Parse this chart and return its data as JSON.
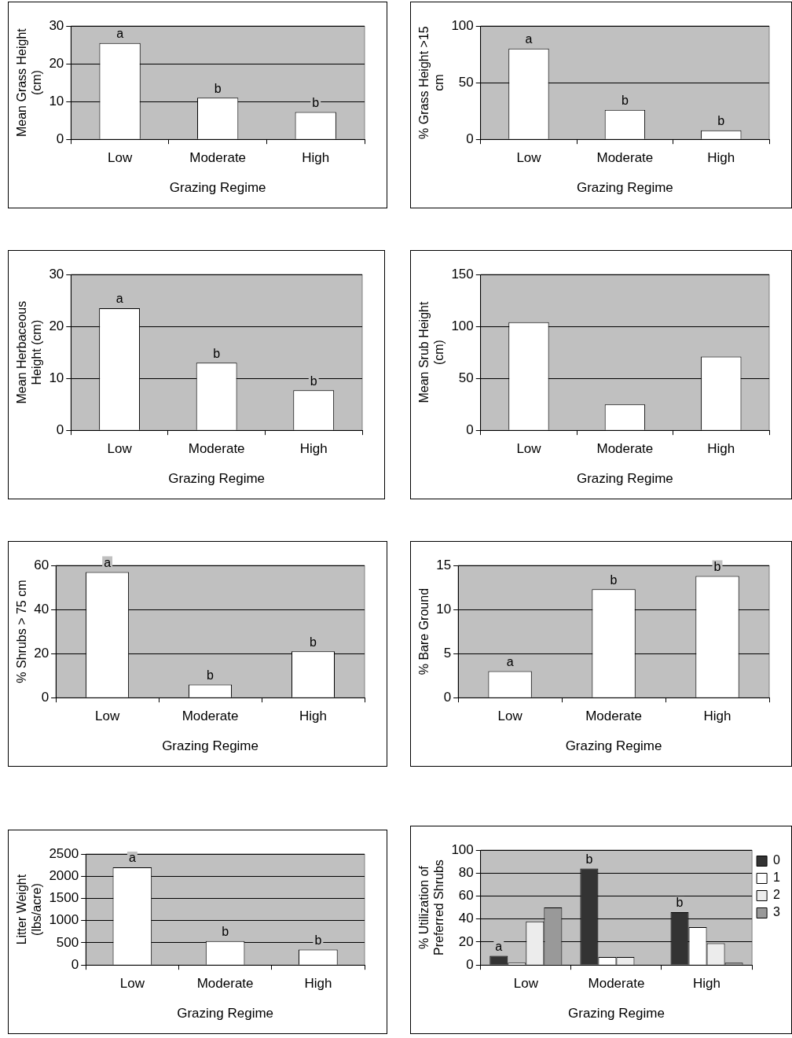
{
  "chart_data": [
    {
      "type": "bar",
      "xlabel": "Grazing Regime",
      "ylabel": "Mean Grass Height (cm)",
      "categories": [
        "Low",
        "Moderate",
        "High"
      ],
      "values": [
        25.5,
        11,
        7.2
      ],
      "color": "#ffffff",
      "ylim": [
        0,
        30
      ],
      "yticks": [
        0,
        10,
        20,
        30
      ],
      "grid": "y",
      "annotations": [
        {
          "text": "a",
          "x": "Low",
          "y": 25.5
        },
        {
          "text": "b",
          "x": "Moderate",
          "y": 11
        },
        {
          "text": "b",
          "x": "High",
          "y": 7.2
        }
      ]
    },
    {
      "type": "bar",
      "xlabel": "Grazing Regime",
      "ylabel": "% Grass Height >15 cm",
      "categories": [
        "Low",
        "Moderate",
        "High"
      ],
      "values": [
        80,
        26,
        8
      ],
      "color": "#ffffff",
      "ylim": [
        0,
        100
      ],
      "yticks": [
        0,
        50,
        100
      ],
      "grid": "y",
      "annotations": [
        {
          "text": "a",
          "x": "Low",
          "y": 80
        },
        {
          "text": "b",
          "x": "Moderate",
          "y": 26
        },
        {
          "text": "b",
          "x": "High",
          "y": 8
        }
      ]
    },
    {
      "type": "bar",
      "xlabel": "Grazing Regime",
      "ylabel": "Mean Herbaceous Height (cm)",
      "categories": [
        "Low",
        "Moderate",
        "High"
      ],
      "values": [
        23.5,
        13,
        7.7
      ],
      "color": "#ffffff",
      "ylim": [
        0,
        30
      ],
      "yticks": [
        0,
        10,
        20,
        30
      ],
      "grid": "y",
      "annotations": [
        {
          "text": "a",
          "x": "Low",
          "y": 23.5
        },
        {
          "text": "b",
          "x": "Moderate",
          "y": 13
        },
        {
          "text": "b",
          "x": "High",
          "y": 7.7
        }
      ]
    },
    {
      "type": "bar",
      "xlabel": "Grazing Regime",
      "ylabel": "Mean Srub Height (cm)",
      "categories": [
        "Low",
        "Moderate",
        "High"
      ],
      "values": [
        104,
        25,
        71
      ],
      "color": "#ffffff",
      "ylim": [
        0,
        150
      ],
      "yticks": [
        0,
        50,
        100,
        150
      ],
      "grid": "y"
    },
    {
      "type": "bar",
      "xlabel": "Grazing Regime",
      "ylabel": "% Shrubs > 75 cm",
      "categories": [
        "Low",
        "Moderate",
        "High"
      ],
      "values": [
        57,
        6,
        21
      ],
      "color": "#ffffff",
      "ylim": [
        0,
        60
      ],
      "yticks": [
        0,
        20,
        40,
        60
      ],
      "grid": "y",
      "annotations": [
        {
          "text": "a",
          "x": "Low",
          "y": 57
        },
        {
          "text": "b",
          "x": "Moderate",
          "y": 6
        },
        {
          "text": "b",
          "x": "High",
          "y": 21
        }
      ]
    },
    {
      "type": "bar",
      "xlabel": "Grazing Regime",
      "ylabel": "% Bare Ground",
      "categories": [
        "Low",
        "Moderate",
        "High"
      ],
      "values": [
        3,
        12.3,
        13.8
      ],
      "color": "#ffffff",
      "ylim": [
        0,
        15
      ],
      "yticks": [
        0,
        5,
        10,
        15
      ],
      "grid": "y",
      "annotations": [
        {
          "text": "a",
          "x": "Low",
          "y": 3
        },
        {
          "text": "b",
          "x": "Moderate",
          "y": 12.3
        },
        {
          "text": "b",
          "x": "High",
          "y": 13.8
        }
      ]
    },
    {
      "type": "bar",
      "xlabel": "Grazing Regime",
      "ylabel": "Litter Weight (lbs/acre)",
      "categories": [
        "Low",
        "Moderate",
        "High"
      ],
      "values": [
        2200,
        540,
        350
      ],
      "color": "#ffffff",
      "ylim": [
        0,
        2500
      ],
      "yticks": [
        0,
        500,
        1000,
        1500,
        2000,
        2500
      ],
      "grid": "y",
      "annotations": [
        {
          "text": "a",
          "x": "Low",
          "y": 2200
        },
        {
          "text": "b",
          "x": "Moderate",
          "y": 540
        },
        {
          "text": "b",
          "x": "High",
          "y": 350
        }
      ]
    },
    {
      "type": "bar",
      "xlabel": "Grazing Regime",
      "ylabel": "% Utilization of Preferred Shrubs",
      "categories": [
        "Low",
        "Moderate",
        "High"
      ],
      "series": [
        {
          "name": "0",
          "color": "#333333",
          "values": [
            8,
            84,
            46
          ]
        },
        {
          "name": "1",
          "color": "#ffffff",
          "values": [
            2,
            7,
            33
          ]
        },
        {
          "name": "2",
          "color": "#ececec",
          "values": [
            38,
            7,
            19
          ]
        },
        {
          "name": "3",
          "color": "#999999",
          "values": [
            50,
            0,
            2
          ]
        }
      ],
      "ylim": [
        0,
        100
      ],
      "yticks": [
        0,
        20,
        40,
        60,
        80,
        100
      ],
      "grid": "y",
      "legend": "top right",
      "annotations": [
        "a",
        "b",
        "b"
      ]
    }
  ]
}
